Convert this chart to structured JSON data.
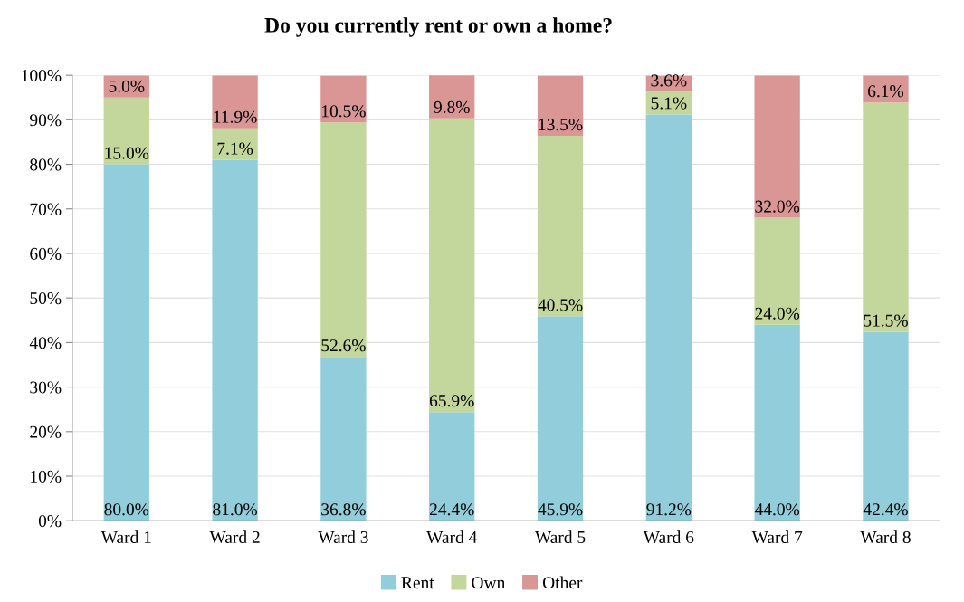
{
  "chart_data": {
    "type": "bar",
    "title": "Do you currently rent or own a home?",
    "stacked": true,
    "categories": [
      "Ward 1",
      "Ward 2",
      "Ward 3",
      "Ward 4",
      "Ward 5",
      "Ward 6",
      "Ward 7",
      "Ward 8"
    ],
    "series": [
      {
        "name": "Rent",
        "color": "#92cddc",
        "values": [
          80.0,
          81.0,
          36.8,
          24.4,
          45.9,
          91.2,
          44.0,
          42.4
        ],
        "value_labels": [
          "80.0%",
          "81.0%",
          "36.8%",
          "24.4%",
          "45.9%",
          "91.2%",
          "44.0%",
          "42.4%"
        ]
      },
      {
        "name": "Own",
        "color": "#c3d69b",
        "values": [
          15.0,
          7.1,
          52.6,
          65.9,
          40.5,
          5.1,
          24.0,
          51.5
        ],
        "value_labels": [
          "15.0%",
          "7.1%",
          "52.6%",
          "65.9%",
          "40.5%",
          "5.1%",
          "24.0%",
          "51.5%"
        ]
      },
      {
        "name": "Other",
        "color": "#d99694",
        "values": [
          5.0,
          11.9,
          10.5,
          9.8,
          13.5,
          3.6,
          32.0,
          6.1
        ],
        "value_labels": [
          "5.0%",
          "11.9%",
          "10.5%",
          "9.8%",
          "13.5%",
          "3.6%",
          "32.0%",
          "6.1%"
        ]
      }
    ],
    "ylim": [
      0,
      100
    ],
    "yticks": [
      {
        "value": 0,
        "label": "0%"
      },
      {
        "value": 10,
        "label": "10%"
      },
      {
        "value": 20,
        "label": "20%"
      },
      {
        "value": 30,
        "label": "30%"
      },
      {
        "value": 40,
        "label": "40%"
      },
      {
        "value": 50,
        "label": "50%"
      },
      {
        "value": 60,
        "label": "60%"
      },
      {
        "value": 70,
        "label": "70%"
      },
      {
        "value": 80,
        "label": "80%"
      },
      {
        "value": 90,
        "label": "90%"
      },
      {
        "value": 100,
        "label": "100%"
      }
    ],
    "grid": "y",
    "legend": "bottom"
  }
}
